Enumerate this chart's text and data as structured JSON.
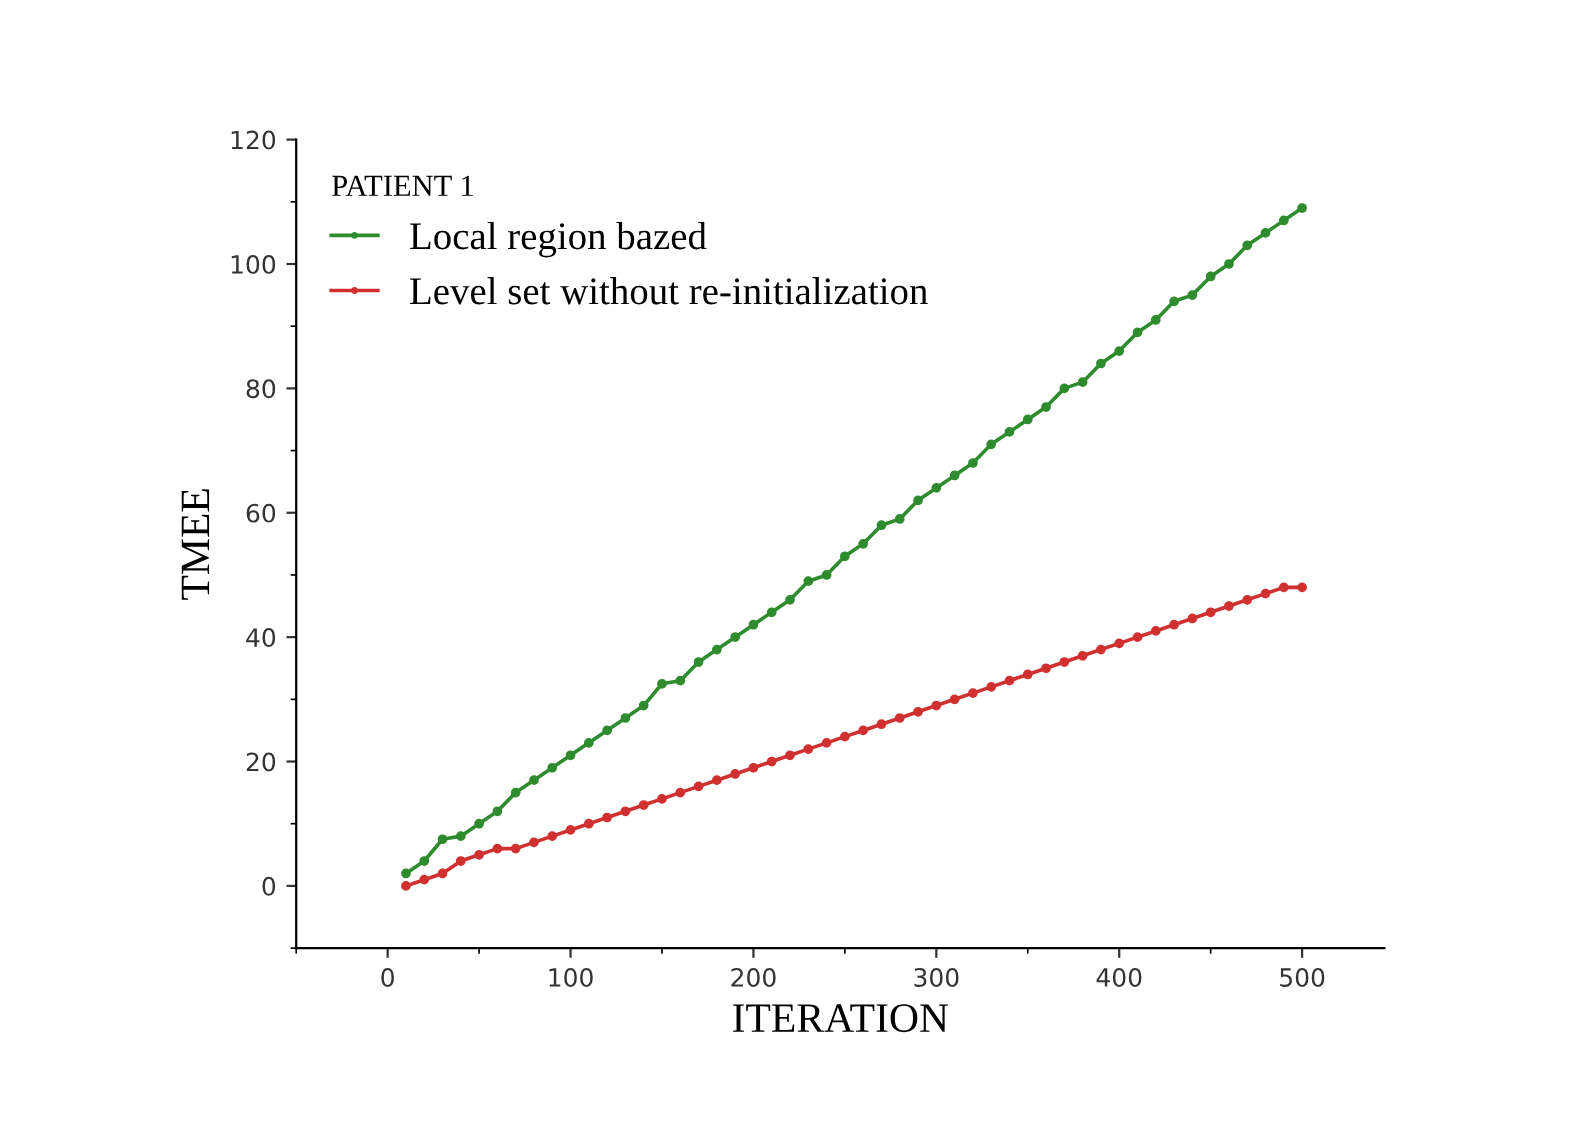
{
  "chart_data": {
    "type": "line",
    "xlabel": "ITERATION",
    "ylabel": "TMEE",
    "legend_title": "PATIENT 1",
    "legend": "top left",
    "grid": false,
    "marker": "circle",
    "line_style": "solid",
    "xlim": [
      -50,
      545
    ],
    "ylim": [
      -10,
      120
    ],
    "xticks": [
      0,
      100,
      200,
      300,
      400,
      500
    ],
    "yticks": [
      0,
      20,
      40,
      60,
      80,
      100,
      120
    ],
    "x": [
      10,
      20,
      30,
      40,
      50,
      60,
      70,
      80,
      90,
      100,
      110,
      120,
      130,
      140,
      150,
      160,
      170,
      180,
      190,
      200,
      210,
      220,
      230,
      240,
      250,
      260,
      270,
      280,
      290,
      300,
      310,
      320,
      330,
      340,
      350,
      360,
      370,
      380,
      390,
      400,
      410,
      420,
      430,
      440,
      450,
      460,
      470,
      480,
      490,
      500
    ],
    "series": [
      {
        "name": "Local region bazed",
        "color": "#2e8b2e",
        "values": [
          2,
          4,
          7.5,
          8,
          10,
          12,
          15,
          17,
          19,
          21,
          23,
          25,
          27,
          29,
          32.5,
          33,
          36,
          38,
          40,
          42,
          44,
          46,
          49,
          50,
          53,
          55,
          58,
          59,
          62,
          64,
          66,
          68,
          71,
          73,
          75,
          77,
          80,
          81,
          84,
          86,
          89,
          91,
          94,
          95,
          98,
          100,
          103,
          105,
          107,
          109
        ]
      },
      {
        "name": "Level set without re-initialization",
        "color": "#d03030",
        "values": [
          0,
          1,
          2,
          4,
          5,
          6,
          6,
          7,
          8,
          9,
          10,
          11,
          12,
          13,
          14,
          15,
          16,
          17,
          18,
          19,
          20,
          21,
          22,
          23,
          24,
          25,
          26,
          27,
          28,
          29,
          30,
          31,
          32,
          33,
          34,
          35,
          36,
          37,
          38,
          39,
          40,
          41,
          42,
          43,
          44,
          45,
          46,
          47,
          48,
          48
        ]
      }
    ]
  }
}
